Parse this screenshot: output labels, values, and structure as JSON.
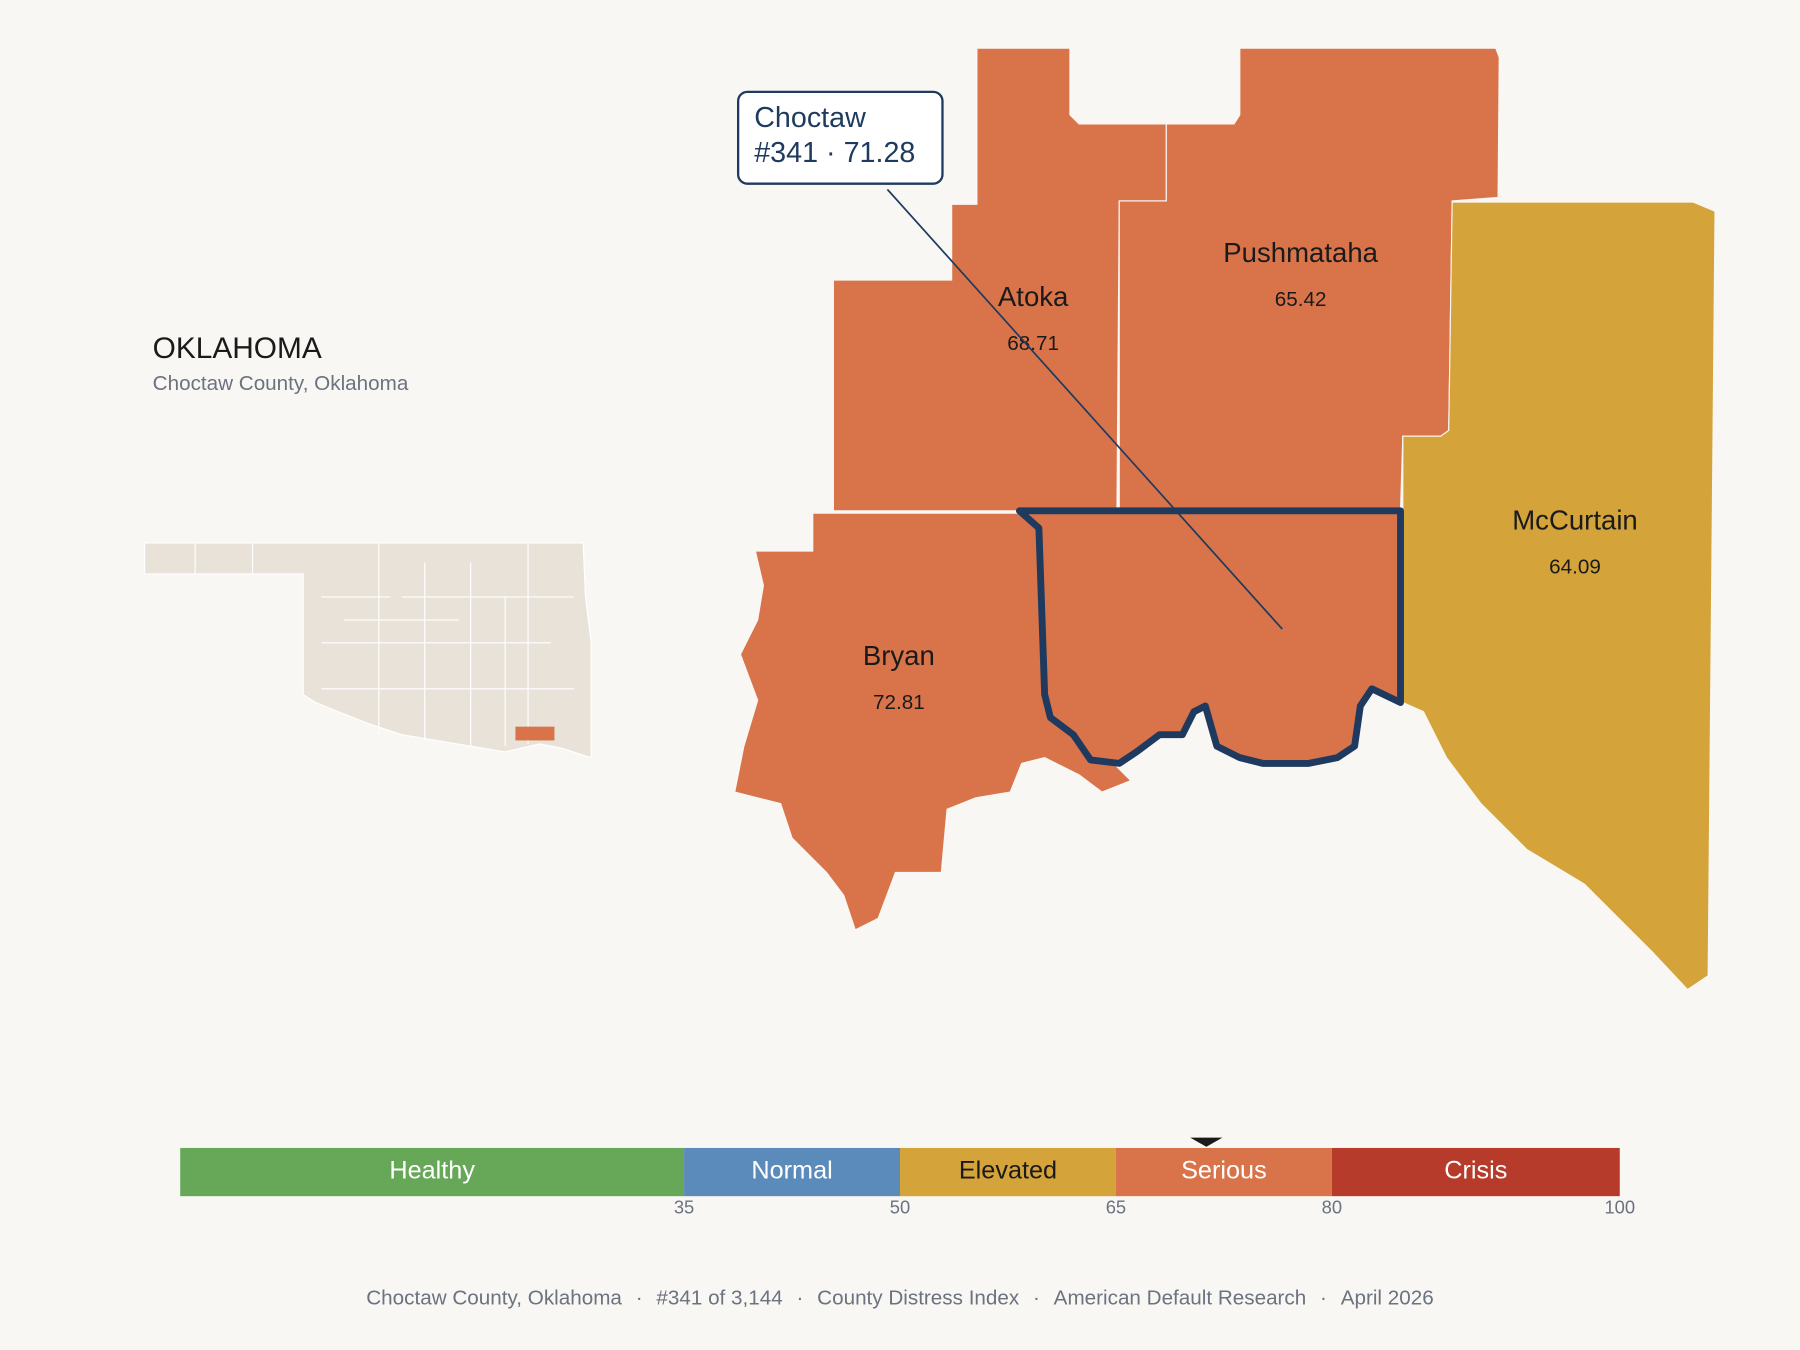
{
  "header": {
    "title": "OKLAHOMA",
    "subtitle": "Choctaw County, Oklahoma"
  },
  "selected": {
    "name": "Choctaw",
    "rank": "#341",
    "separator": "·",
    "score": 71.28
  },
  "counties": [
    {
      "name": "Atoka",
      "score": 68.71
    },
    {
      "name": "Pushmataha",
      "score": 65.42
    },
    {
      "name": "McCurtain",
      "score": 64.09
    },
    {
      "name": "Bryan",
      "score": 72.81
    }
  ],
  "legend": {
    "scale_min": 0,
    "segments": [
      {
        "label": "Healthy",
        "max": 35,
        "color": "#67a758",
        "text_color": "#ffffff"
      },
      {
        "label": "Normal",
        "max": 50,
        "color": "#5b8bba",
        "text_color": "#ffffff"
      },
      {
        "label": "Elevated",
        "max": 65,
        "color": "#d4a33a",
        "text_color": "#1a1a1a"
      },
      {
        "label": "Serious",
        "max": 80,
        "color": "#d9744a",
        "text_color": "#ffffff"
      },
      {
        "label": "Crisis",
        "max": 100,
        "color": "#b73b2a",
        "text_color": "#ffffff"
      }
    ]
  },
  "footer": {
    "separator": "·",
    "items": [
      "Choctaw County, Oklahoma",
      "#341 of 3,144",
      "County Distress Index",
      "American Default Research",
      "April 2026"
    ]
  }
}
